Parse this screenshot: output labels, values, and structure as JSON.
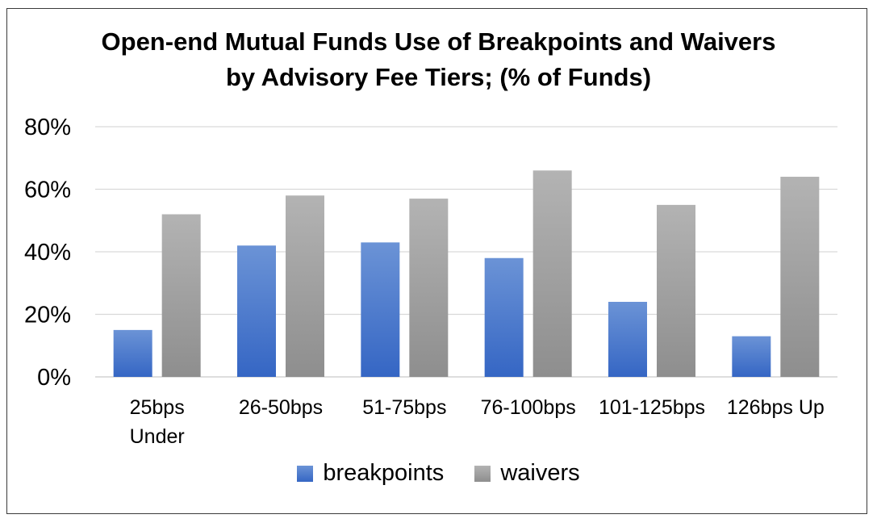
{
  "chart_data": {
    "type": "bar",
    "title_lines": [
      "Open-end Mutual Funds Use of Breakpoints and Waivers",
      "by Advisory Fee Tiers; (% of Funds)"
    ],
    "categories": [
      [
        "25bps",
        "Under"
      ],
      [
        "26-50bps"
      ],
      [
        "51-75bps"
      ],
      [
        "76-100bps"
      ],
      [
        "101-125bps"
      ],
      [
        "126bps Up"
      ]
    ],
    "series": [
      {
        "name": "breakpoints",
        "color": "#4472C4",
        "values": [
          15,
          42,
          43,
          38,
          24,
          13
        ]
      },
      {
        "name": "waivers",
        "color": "#A5A5A5",
        "values": [
          52,
          58,
          57,
          66,
          55,
          64
        ]
      }
    ],
    "ylim": [
      0,
      80
    ],
    "yticks": [
      0,
      20,
      40,
      60,
      80
    ],
    "ytick_labels": [
      "0%",
      "20%",
      "40%",
      "60%",
      "80%"
    ],
    "xlabel": "",
    "ylabel": "",
    "grid": true,
    "legend_position": "bottom"
  }
}
